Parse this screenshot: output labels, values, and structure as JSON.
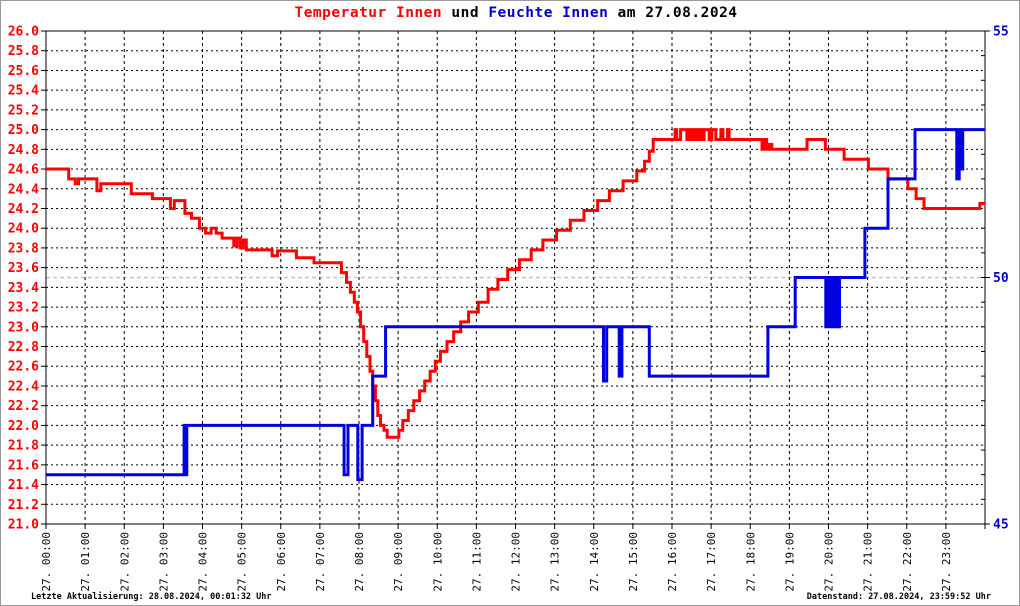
{
  "title": {
    "full": "Temperatur Innen und Feuchte Innen am 27.08.2024",
    "parts": [
      {
        "text": "Temperatur Innen",
        "color": "#FF0000"
      },
      {
        "text": " und ",
        "color": "#000000"
      },
      {
        "text": "Feuchte Innen",
        "color": "#0000CC"
      },
      {
        "text": " am 27.08.2024",
        "color": "#000000"
      }
    ]
  },
  "footer": {
    "left": "Letzte Aktualisierung: 28.08.2024, 00:01:32 Uhr",
    "right": "Datenstand: 27.08.2024, 23:59:52 Uhr"
  },
  "chart_data": {
    "type": "line",
    "title": "Temperatur Innen und Feuchte Innen am 27.08.2024",
    "grid": true,
    "legend_position": "none",
    "x_axis": {
      "range_hours": [
        0,
        24
      ],
      "tick_labels": [
        "27. 00:00",
        "27. 01:00",
        "27. 02:00",
        "27. 03:00",
        "27. 04:00",
        "27. 05:00",
        "27. 06:00",
        "27. 07:00",
        "27. 08:00",
        "27. 09:00",
        "27. 10:00",
        "27. 11:00",
        "27. 12:00",
        "27. 13:00",
        "27. 14:00",
        "27. 15:00",
        "27. 16:00",
        "27. 17:00",
        "27. 18:00",
        "27. 19:00",
        "27. 20:00",
        "27. 21:00",
        "27. 22:00",
        "27. 23:00"
      ]
    },
    "left_axis": {
      "name": "Temperatur Innen",
      "min": 21.0,
      "max": 26.0,
      "tick_step": 0.2,
      "color": "#FF0000",
      "tick_labels": [
        "26.0",
        "25.8",
        "25.6",
        "25.4",
        "25.2",
        "25.0",
        "24.8",
        "24.6",
        "24.4",
        "24.2",
        "24.0",
        "23.8",
        "23.6",
        "23.4",
        "23.2",
        "23.0",
        "22.8",
        "22.6",
        "22.4",
        "22.2",
        "22.0",
        "21.8",
        "21.6",
        "21.4",
        "21.2",
        "21.0"
      ]
    },
    "right_axis": {
      "name": "Feuchte Innen",
      "min": 45,
      "max": 55,
      "tick_step": 0.5,
      "color": "#0000CC",
      "tick_labels": [
        "55",
        "50",
        "45"
      ],
      "gray_gridline_at": 50
    },
    "series": [
      {
        "name": "Temperatur Innen",
        "axis": "left",
        "color": "#FF0000",
        "mode": "step-after",
        "step_points": [
          [
            0.0,
            24.6
          ],
          [
            0.58,
            24.5
          ],
          [
            0.75,
            24.45
          ],
          [
            0.83,
            24.5
          ],
          [
            1.3,
            24.38
          ],
          [
            1.4,
            24.45
          ],
          [
            2.18,
            24.35
          ],
          [
            2.72,
            24.3
          ],
          [
            3.18,
            24.2
          ],
          [
            3.28,
            24.28
          ],
          [
            3.55,
            24.15
          ],
          [
            3.72,
            24.1
          ],
          [
            3.92,
            24.0
          ],
          [
            4.08,
            23.95
          ],
          [
            4.22,
            24.0
          ],
          [
            4.35,
            23.95
          ],
          [
            4.5,
            23.9
          ],
          [
            4.8,
            23.82
          ],
          [
            4.88,
            23.9
          ],
          [
            4.96,
            23.8
          ],
          [
            5.04,
            23.88
          ],
          [
            5.12,
            23.78
          ],
          [
            5.78,
            23.72
          ],
          [
            5.92,
            23.77
          ],
          [
            6.4,
            23.7
          ],
          [
            6.85,
            23.65
          ],
          [
            7.55,
            23.55
          ],
          [
            7.68,
            23.45
          ],
          [
            7.78,
            23.35
          ],
          [
            7.88,
            23.25
          ],
          [
            7.96,
            23.15
          ],
          [
            8.04,
            23.0
          ],
          [
            8.12,
            22.85
          ],
          [
            8.2,
            22.7
          ],
          [
            8.28,
            22.55
          ],
          [
            8.35,
            22.4
          ],
          [
            8.42,
            22.25
          ],
          [
            8.48,
            22.1
          ],
          [
            8.55,
            22.0
          ],
          [
            8.64,
            21.95
          ],
          [
            8.72,
            21.88
          ],
          [
            9.02,
            21.95
          ],
          [
            9.12,
            22.05
          ],
          [
            9.26,
            22.15
          ],
          [
            9.4,
            22.25
          ],
          [
            9.55,
            22.35
          ],
          [
            9.68,
            22.45
          ],
          [
            9.82,
            22.55
          ],
          [
            9.95,
            22.65
          ],
          [
            10.08,
            22.75
          ],
          [
            10.25,
            22.85
          ],
          [
            10.42,
            22.95
          ],
          [
            10.6,
            23.05
          ],
          [
            10.8,
            23.15
          ],
          [
            11.05,
            23.25
          ],
          [
            11.3,
            23.38
          ],
          [
            11.55,
            23.48
          ],
          [
            11.8,
            23.58
          ],
          [
            12.1,
            23.68
          ],
          [
            12.4,
            23.78
          ],
          [
            12.7,
            23.88
          ],
          [
            13.05,
            23.98
          ],
          [
            13.4,
            24.08
          ],
          [
            13.75,
            24.18
          ],
          [
            14.1,
            24.28
          ],
          [
            14.4,
            24.38
          ],
          [
            14.75,
            24.48
          ],
          [
            15.1,
            24.58
          ],
          [
            15.3,
            24.68
          ],
          [
            15.42,
            24.78
          ],
          [
            15.52,
            24.9
          ],
          [
            16.08,
            25.0
          ],
          [
            16.12,
            24.9
          ],
          [
            16.22,
            25.0
          ],
          [
            16.38,
            24.9
          ],
          [
            16.45,
            25.0
          ],
          [
            16.52,
            24.9
          ],
          [
            16.58,
            25.0
          ],
          [
            16.65,
            24.9
          ],
          [
            16.72,
            25.0
          ],
          [
            16.76,
            24.9
          ],
          [
            16.82,
            25.0
          ],
          [
            16.95,
            24.9
          ],
          [
            17.02,
            25.0
          ],
          [
            17.12,
            24.9
          ],
          [
            17.25,
            25.0
          ],
          [
            17.3,
            24.9
          ],
          [
            17.42,
            25.0
          ],
          [
            17.46,
            24.9
          ],
          [
            18.3,
            24.8
          ],
          [
            18.36,
            24.9
          ],
          [
            18.42,
            24.8
          ],
          [
            18.48,
            24.85
          ],
          [
            18.55,
            24.8
          ],
          [
            19.45,
            24.9
          ],
          [
            19.92,
            24.8
          ],
          [
            20.4,
            24.7
          ],
          [
            21.02,
            24.6
          ],
          [
            21.52,
            24.5
          ],
          [
            22.03,
            24.4
          ],
          [
            22.24,
            24.3
          ],
          [
            22.44,
            24.2
          ],
          [
            23.87,
            24.25
          ]
        ]
      },
      {
        "name": "Feuchte Innen",
        "axis": "right",
        "color": "#0000E0",
        "mode": "step-after",
        "step_points": [
          [
            0.0,
            46.0
          ],
          [
            3.53,
            47.0
          ],
          [
            3.57,
            46.0
          ],
          [
            3.6,
            47.0
          ],
          [
            7.62,
            46.0
          ],
          [
            7.72,
            47.0
          ],
          [
            7.97,
            45.9
          ],
          [
            8.08,
            47.0
          ],
          [
            8.35,
            48.0
          ],
          [
            8.68,
            49.0
          ],
          [
            14.25,
            47.9
          ],
          [
            14.33,
            49.0
          ],
          [
            14.65,
            48.0
          ],
          [
            14.72,
            49.0
          ],
          [
            15.42,
            48.0
          ],
          [
            18.45,
            49.0
          ],
          [
            19.15,
            50.0
          ],
          [
            19.93,
            49.0
          ],
          [
            19.98,
            50.0
          ],
          [
            20.03,
            49.0
          ],
          [
            20.08,
            50.0
          ],
          [
            20.14,
            49.0
          ],
          [
            20.19,
            50.0
          ],
          [
            20.24,
            49.0
          ],
          [
            20.28,
            50.0
          ],
          [
            20.93,
            51.0
          ],
          [
            21.52,
            52.0
          ],
          [
            22.21,
            53.0
          ],
          [
            23.28,
            52.0
          ],
          [
            23.34,
            53.0
          ],
          [
            23.38,
            52.2
          ],
          [
            23.43,
            53.0
          ]
        ]
      }
    ]
  }
}
